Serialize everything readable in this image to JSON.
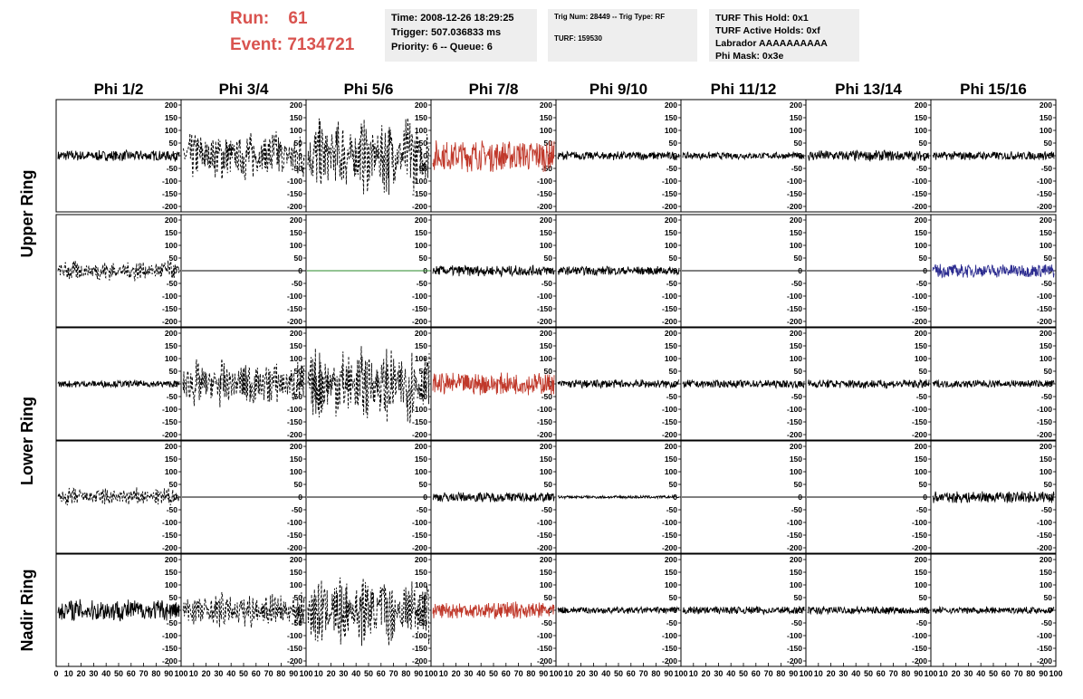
{
  "header": {
    "run_label": "Run:",
    "run_value": "61",
    "event_label": "Event:",
    "event_value": "7134721",
    "time_box": [
      "Time: 2008-12-26 18:29:25",
      "Trigger: 507.036833 ms",
      "Priority: 6 -- Queue: 6"
    ],
    "trig_box": [
      "Trig Num: 28449 -- Trig Type: RF",
      "",
      "TURF: 159530"
    ],
    "turf_box": [
      "TURF This Hold: 0x1",
      "TURF Active Holds: 0xf",
      "Labrador AAAAAAAAAA",
      "Phi Mask: 0x3e"
    ]
  },
  "chart_data": {
    "type": "line",
    "columns": [
      "Phi 1/2",
      "Phi 3/4",
      "Phi 5/6",
      "Phi 7/8",
      "Phi 9/10",
      "Phi 11/12",
      "Phi 13/14",
      "Phi 15/16"
    ],
    "ring_labels": [
      "Upper Ring",
      "Lower Ring",
      "Nadir Ring"
    ],
    "ylim": [
      -200,
      200
    ],
    "yticks": [
      "200",
      "150",
      "100",
      "50",
      "0",
      "-50",
      "-100",
      "-150",
      "-200"
    ],
    "xlim": [
      0,
      100
    ],
    "xticks": [
      "0",
      "10",
      "20",
      "30",
      "40",
      "50",
      "60",
      "70",
      "80",
      "90",
      "100"
    ],
    "colors": {
      "normal": "#000000",
      "triggered": "#c0392b",
      "masked": "#2a8a2a",
      "blue": "#2b2b8f"
    },
    "rows": [
      {
        "ring": "Upper Ring",
        "cells": [
          {
            "style": "solid",
            "color": "normal",
            "amp": 22
          },
          {
            "style": "dashed",
            "color": "normal",
            "amp": 110
          },
          {
            "style": "dashed",
            "color": "normal",
            "amp": 165
          },
          {
            "style": "solid",
            "color": "triggered",
            "amp": 65
          },
          {
            "style": "solid",
            "color": "normal",
            "amp": 18
          },
          {
            "style": "solid",
            "color": "normal",
            "amp": 14
          },
          {
            "style": "solid",
            "color": "normal",
            "amp": 22
          },
          {
            "style": "solid",
            "color": "normal",
            "amp": 18
          }
        ]
      },
      {
        "ring": "Upper Ring",
        "cells": [
          {
            "style": "dashed",
            "color": "normal",
            "amp": 45
          },
          {
            "style": "flat",
            "color": "normal",
            "amp": 0
          },
          {
            "style": "flat",
            "color": "masked",
            "amp": 0
          },
          {
            "style": "solid",
            "color": "normal",
            "amp": 22
          },
          {
            "style": "solid",
            "color": "normal",
            "amp": 18
          },
          {
            "style": "solid",
            "color": "normal",
            "amp": 0
          },
          {
            "style": "solid",
            "color": "normal",
            "amp": 0
          },
          {
            "style": "solid",
            "color": "blue",
            "amp": 28
          }
        ]
      },
      {
        "ring": "Lower Ring",
        "cells": [
          {
            "style": "solid",
            "color": "normal",
            "amp": 14
          },
          {
            "style": "dashed",
            "color": "normal",
            "amp": 100
          },
          {
            "style": "dashed",
            "color": "normal",
            "amp": 160
          },
          {
            "style": "solid",
            "color": "triggered",
            "amp": 45
          },
          {
            "style": "solid",
            "color": "normal",
            "amp": 18
          },
          {
            "style": "solid",
            "color": "normal",
            "amp": 16
          },
          {
            "style": "solid",
            "color": "normal",
            "amp": 18
          },
          {
            "style": "solid",
            "color": "normal",
            "amp": 16
          }
        ]
      },
      {
        "ring": "Lower Ring",
        "cells": [
          {
            "style": "dashed",
            "color": "normal",
            "amp": 40
          },
          {
            "style": "flat",
            "color": "normal",
            "amp": 0
          },
          {
            "style": "flat",
            "color": "normal",
            "amp": 0
          },
          {
            "style": "solid",
            "color": "normal",
            "amp": 20
          },
          {
            "style": "solid",
            "color": "normal",
            "amp": 6
          },
          {
            "style": "solid",
            "color": "normal",
            "amp": 0
          },
          {
            "style": "solid",
            "color": "normal",
            "amp": 0
          },
          {
            "style": "solid",
            "color": "normal",
            "amp": 24
          }
        ]
      },
      {
        "ring": "Nadir Ring",
        "cells": [
          {
            "style": "solid",
            "color": "normal",
            "amp": 45
          },
          {
            "style": "dashed",
            "color": "normal",
            "amp": 75
          },
          {
            "style": "dashed",
            "color": "normal",
            "amp": 150
          },
          {
            "style": "solid",
            "color": "triggered",
            "amp": 35
          },
          {
            "style": "solid",
            "color": "normal",
            "amp": 14
          },
          {
            "style": "solid",
            "color": "normal",
            "amp": 16
          },
          {
            "style": "solid",
            "color": "normal",
            "amp": 16
          },
          {
            "style": "solid",
            "color": "normal",
            "amp": 14
          }
        ]
      }
    ]
  }
}
